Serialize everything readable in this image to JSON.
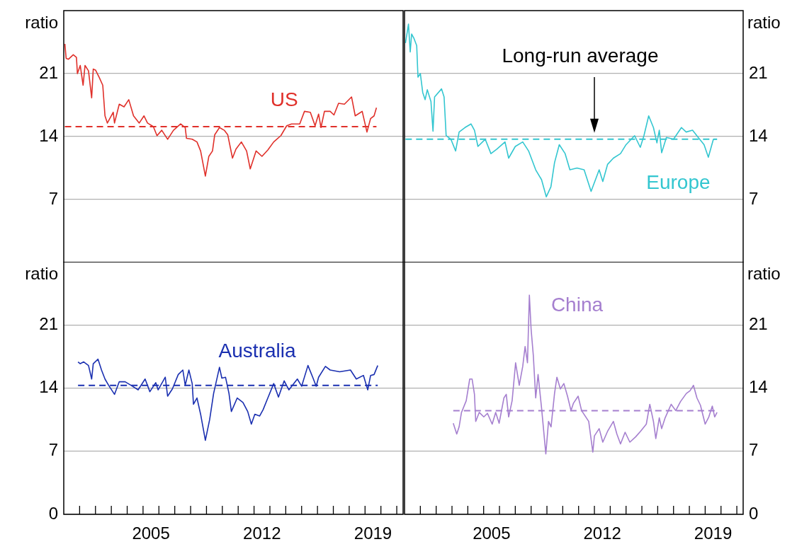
{
  "chart_data": [
    {
      "type": "line",
      "ylabel": "ratio",
      "xlim": [
        2000,
        2021.4
      ],
      "ylim": [
        0,
        28
      ],
      "yticks": [
        7,
        14,
        21
      ],
      "grid": "y",
      "tick_labels": "y",
      "series": [
        {
          "name": "US",
          "color": "#e0302a",
          "x": [
            2000.07,
            2000.15,
            2000.3,
            2000.6,
            2000.8,
            2000.86,
            2001.04,
            2001.22,
            2001.34,
            2001.56,
            2001.76,
            2001.86,
            2002.0,
            2002.23,
            2002.46,
            2002.6,
            2002.75,
            2003.12,
            2003.2,
            2003.5,
            2003.8,
            2004.1,
            2004.4,
            2004.76,
            2005.06,
            2005.28,
            2005.65,
            2005.88,
            2006.18,
            2006.55,
            2006.92,
            2007.37,
            2007.66,
            2007.74,
            2008.1,
            2008.4,
            2008.63,
            2008.93,
            2009.15,
            2009.38,
            2009.52,
            2009.82,
            2010.12,
            2010.34,
            2010.64,
            2010.86,
            2011.2,
            2011.53,
            2011.76,
            2012.13,
            2012.5,
            2012.87,
            2013.24,
            2013.69,
            2014.06,
            2014.36,
            2014.88,
            2015.18,
            2015.55,
            2015.85,
            2016.07,
            2016.22,
            2016.44,
            2016.8,
            2017.04,
            2017.33,
            2017.7,
            2018.15,
            2018.38,
            2018.82,
            2019.12,
            2019.35,
            2019.57,
            2019.72
          ],
          "values": [
            24.3,
            22.7,
            22.6,
            23.1,
            22.8,
            21,
            21.9,
            19.7,
            21.9,
            21.3,
            18.3,
            21.5,
            21.4,
            20.6,
            19.7,
            16.3,
            15.5,
            16.7,
            15.5,
            17.6,
            17.3,
            18.1,
            16.3,
            15.5,
            16.3,
            15.5,
            15.1,
            14.1,
            14.7,
            13.7,
            14.7,
            15.4,
            15.0,
            13.8,
            13.7,
            13.4,
            12.4,
            9.6,
            11.8,
            12.4,
            14.2,
            15.0,
            14.7,
            14.2,
            11.6,
            12.6,
            13.4,
            12.4,
            10.4,
            12.4,
            11.8,
            12.5,
            13.4,
            14.1,
            15.2,
            15.4,
            15.4,
            16.8,
            16.7,
            15.2,
            16.5,
            15.0,
            16.8,
            16.8,
            16.4,
            17.7,
            17.6,
            18.4,
            16.3,
            16.8,
            14.5,
            16.0,
            16.3,
            17.2
          ]
        }
      ],
      "ref_lines": [
        {
          "axis": "y",
          "value": 15.1,
          "color": "#e0302a",
          "line_style": "dashed"
        }
      ]
    },
    {
      "type": "line",
      "ylabel": "ratio",
      "xlim": [
        2000,
        2021.4
      ],
      "ylim": [
        0,
        28
      ],
      "yticks": [
        7,
        14,
        21
      ],
      "grid": "y",
      "tick_labels": "y",
      "series": [
        {
          "name": "Europe",
          "color": "#33c6d0",
          "x": [
            2000.06,
            2000.25,
            2000.36,
            2000.45,
            2000.6,
            2000.77,
            2000.85,
            2001.0,
            2001.15,
            2001.3,
            2001.44,
            2001.67,
            2001.8,
            2001.9,
            2002.34,
            2002.5,
            2002.63,
            2002.93,
            2003.23,
            2003.45,
            2003.82,
            2004.2,
            2004.42,
            2004.64,
            2005.1,
            2005.46,
            2005.83,
            2006.35,
            2006.58,
            2007.0,
            2007.47,
            2007.84,
            2008.29,
            2008.66,
            2008.96,
            2009.25,
            2009.48,
            2009.78,
            2010.15,
            2010.45,
            2010.9,
            2011.35,
            2011.79,
            2012.3,
            2012.53,
            2012.83,
            2013.2,
            2013.65,
            2014.0,
            2014.54,
            2014.9,
            2015.13,
            2015.43,
            2015.73,
            2015.95,
            2016.1,
            2016.25,
            2016.55,
            2017.0,
            2017.5,
            2017.8,
            2018.2,
            2018.56,
            2018.93,
            2019.2,
            2019.52,
            2019.75
          ],
          "values": [
            24.4,
            26.5,
            23.4,
            25.4,
            24.9,
            24.1,
            20.6,
            21,
            18.9,
            18.1,
            19.2,
            17.9,
            14.6,
            18.4,
            19.3,
            18.4,
            14.1,
            13.7,
            12.4,
            14.5,
            15.0,
            15.4,
            14.7,
            12.9,
            13.7,
            12.1,
            12.6,
            13.4,
            11.6,
            12.9,
            13.4,
            12.4,
            10.3,
            9.2,
            7.3,
            8.4,
            11.1,
            13.1,
            12.1,
            10.3,
            10.5,
            10.3,
            7.9,
            10.3,
            9.0,
            10.9,
            11.6,
            12.1,
            13.1,
            14.1,
            12.8,
            14.1,
            16.3,
            15.0,
            13.3,
            14.7,
            12.2,
            13.9,
            13.7,
            15.0,
            14.5,
            14.7,
            13.9,
            13.1,
            11.7,
            13.7,
            13.7
          ]
        }
      ],
      "ref_lines": [
        {
          "axis": "y",
          "value": 13.7,
          "color": "#33c6d0",
          "line_style": "dashed"
        }
      ],
      "annotations": [
        "Long-run average"
      ]
    },
    {
      "type": "line",
      "ylabel": "ratio",
      "xlim": [
        2000,
        2021.4
      ],
      "ylim": [
        0,
        28
      ],
      "yticks": [
        0,
        7,
        14,
        21
      ],
      "grid": "y",
      "xticks": [
        {
          "value": 2001,
          "label": null
        },
        {
          "value": 2002,
          "label": null
        },
        {
          "value": 2003,
          "label": null
        },
        {
          "value": 2004,
          "label": null
        },
        {
          "value": 2005,
          "label": null
        },
        {
          "value": 2005.5,
          "label": "2005"
        },
        {
          "value": 2006,
          "label": null
        },
        {
          "value": 2007,
          "label": null
        },
        {
          "value": 2008,
          "label": null
        },
        {
          "value": 2009,
          "label": null
        },
        {
          "value": 2010,
          "label": null
        },
        {
          "value": 2011,
          "label": null
        },
        {
          "value": 2012,
          "label": null
        },
        {
          "value": 2012.5,
          "label": "2012"
        },
        {
          "value": 2013,
          "label": null
        },
        {
          "value": 2014,
          "label": null
        },
        {
          "value": 2015,
          "label": null
        },
        {
          "value": 2016,
          "label": null
        },
        {
          "value": 2017,
          "label": null
        },
        {
          "value": 2018,
          "label": null
        },
        {
          "value": 2019,
          "label": null
        },
        {
          "value": 2019.5,
          "label": "2019"
        },
        {
          "value": 2020,
          "label": null
        },
        {
          "value": 2021,
          "label": null
        }
      ],
      "series": [
        {
          "name": "Australia",
          "color": "#1a2fb0",
          "x": [
            2000.9,
            2001.04,
            2001.26,
            2001.56,
            2001.76,
            2001.86,
            2002.16,
            2002.38,
            2002.6,
            2002.83,
            2003.2,
            2003.5,
            2003.87,
            2004.24,
            2004.69,
            2005.13,
            2005.43,
            2005.8,
            2005.95,
            2006.4,
            2006.55,
            2006.85,
            2007.22,
            2007.51,
            2007.66,
            2007.89,
            2008.1,
            2008.18,
            2008.4,
            2008.63,
            2008.93,
            2009.2,
            2009.45,
            2009.82,
            2009.97,
            2010.2,
            2010.42,
            2010.57,
            2010.94,
            2011.3,
            2011.6,
            2011.83,
            2012.05,
            2012.35,
            2012.57,
            2012.87,
            2013.24,
            2013.54,
            2013.9,
            2014.2,
            2014.73,
            2015.0,
            2015.4,
            2015.7,
            2015.92,
            2016.07,
            2016.5,
            2016.8,
            2017.4,
            2018.08,
            2018.45,
            2018.9,
            2019.17,
            2019.35,
            2019.57,
            2019.8
          ],
          "values": [
            16.9,
            16.7,
            16.9,
            16.5,
            15.0,
            16.7,
            17.2,
            16.0,
            15.0,
            14.3,
            13.3,
            14.7,
            14.7,
            14.3,
            13.8,
            15.0,
            13.6,
            14.6,
            13.8,
            15.2,
            13.1,
            13.9,
            15.5,
            16.0,
            14.3,
            16.0,
            14.5,
            12.2,
            12.9,
            11.1,
            8.2,
            10.5,
            13.4,
            16.3,
            15.1,
            15.2,
            13.4,
            11.4,
            12.9,
            12.4,
            11.4,
            10.0,
            11.1,
            10.9,
            11.6,
            12.9,
            14.5,
            13.0,
            14.8,
            13.8,
            15.0,
            14.2,
            16.5,
            15.2,
            14.2,
            15.2,
            16.4,
            16.0,
            15.8,
            16.0,
            15.0,
            15.4,
            13.8,
            15.4,
            15.5,
            16.5
          ]
        }
      ],
      "ref_lines": [
        {
          "axis": "y",
          "value": 14.3,
          "color": "#1a2fb0",
          "line_style": "dashed"
        }
      ]
    },
    {
      "type": "line",
      "ylabel": "ratio",
      "xlim": [
        2000,
        2021.4
      ],
      "ylim": [
        0,
        28
      ],
      "yticks": [
        0,
        7,
        14,
        21
      ],
      "grid": "y",
      "xticks": [
        {
          "value": 2001,
          "label": null
        },
        {
          "value": 2002,
          "label": null
        },
        {
          "value": 2003,
          "label": null
        },
        {
          "value": 2004,
          "label": null
        },
        {
          "value": 2005,
          "label": null
        },
        {
          "value": 2005.5,
          "label": "2005"
        },
        {
          "value": 2006,
          "label": null
        },
        {
          "value": 2007,
          "label": null
        },
        {
          "value": 2008,
          "label": null
        },
        {
          "value": 2009,
          "label": null
        },
        {
          "value": 2010,
          "label": null
        },
        {
          "value": 2011,
          "label": null
        },
        {
          "value": 2012,
          "label": null
        },
        {
          "value": 2012.5,
          "label": "2012"
        },
        {
          "value": 2013,
          "label": null
        },
        {
          "value": 2014,
          "label": null
        },
        {
          "value": 2015,
          "label": null
        },
        {
          "value": 2016,
          "label": null
        },
        {
          "value": 2017,
          "label": null
        },
        {
          "value": 2018,
          "label": null
        },
        {
          "value": 2019,
          "label": null
        },
        {
          "value": 2019.5,
          "label": "2019"
        },
        {
          "value": 2020,
          "label": null
        },
        {
          "value": 2021,
          "label": null
        }
      ],
      "series": [
        {
          "name": "China",
          "color": "#a57fcf",
          "x": [
            2003.08,
            2003.3,
            2003.45,
            2003.6,
            2003.9,
            2004.12,
            2004.27,
            2004.42,
            2004.5,
            2004.72,
            2005.01,
            2005.24,
            2005.54,
            2005.76,
            2005.98,
            2006.28,
            2006.43,
            2006.58,
            2006.8,
            2007.02,
            2007.25,
            2007.47,
            2007.62,
            2007.77,
            2007.89,
            2008.0,
            2008.14,
            2008.29,
            2008.44,
            2008.66,
            2008.93,
            2009.1,
            2009.26,
            2009.48,
            2009.63,
            2009.85,
            2010.07,
            2010.3,
            2010.52,
            2010.67,
            2010.97,
            2011.19,
            2011.64,
            2011.9,
            2012.0,
            2012.3,
            2012.53,
            2012.83,
            2013.2,
            2013.42,
            2013.65,
            2013.94,
            2014.24,
            2014.61,
            2014.91,
            2015.28,
            2015.5,
            2015.73,
            2015.88,
            2016.1,
            2016.25,
            2016.47,
            2016.85,
            2017.14,
            2017.44,
            2017.81,
            2018.04,
            2018.26,
            2018.48,
            2018.7,
            2019.0,
            2019.23,
            2019.45,
            2019.6,
            2019.75
          ],
          "values": [
            10.1,
            8.9,
            9.7,
            11.3,
            12.6,
            15.0,
            15.0,
            13.3,
            10.3,
            11.3,
            10.8,
            11.2,
            10.0,
            11.3,
            10.1,
            12.9,
            13.3,
            10.8,
            12.6,
            16.8,
            14.3,
            16.4,
            18.6,
            16.8,
            24.3,
            20.5,
            17.6,
            12.9,
            15.5,
            11.8,
            6.7,
            10.3,
            9.7,
            13.4,
            15.2,
            13.9,
            14.5,
            13.1,
            11.5,
            12.3,
            13.1,
            11.5,
            10.3,
            6.9,
            8.7,
            9.5,
            8.0,
            9.2,
            10.3,
            8.9,
            7.8,
            9.1,
            8.0,
            8.6,
            9.2,
            10.0,
            12.2,
            10.3,
            8.4,
            10.7,
            9.5,
            10.7,
            12.2,
            11.5,
            12.5,
            13.4,
            13.7,
            14.3,
            12.9,
            12.1,
            10.0,
            10.8,
            12.0,
            10.8,
            11.3
          ]
        }
      ],
      "ref_lines": [
        {
          "axis": "y",
          "value": 11.5,
          "color": "#a57fcf",
          "line_style": "dashed"
        }
      ]
    }
  ]
}
